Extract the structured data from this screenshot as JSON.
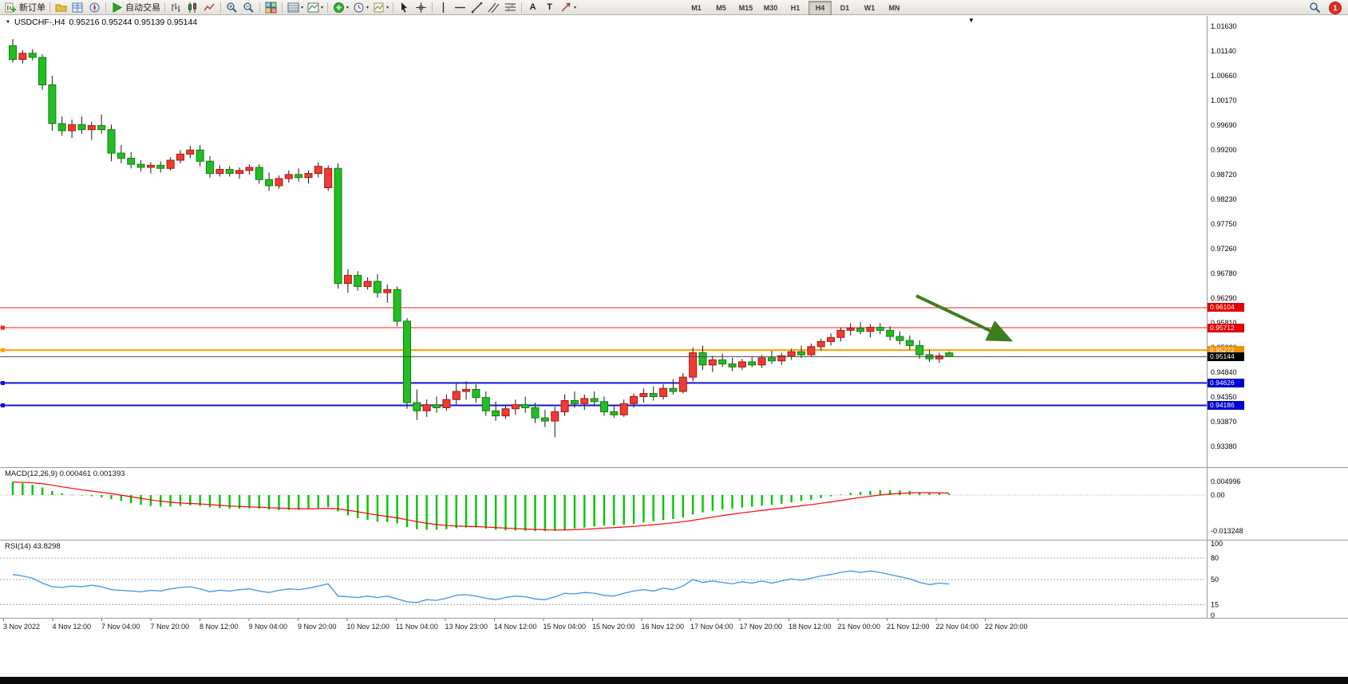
{
  "toolbar": {
    "new_order": "新订单",
    "auto_trading": "自动交易",
    "text_tool": "A",
    "label_tool": "T",
    "timeframes": [
      "M1",
      "M5",
      "M15",
      "M30",
      "H1",
      "H4",
      "D1",
      "W1",
      "MN"
    ],
    "active_timeframe": "H4",
    "notification_count": "1"
  },
  "chart": {
    "symbol_period": "USDCHF-,H4",
    "ohlc": "0.95216 0.95244 0.95139 0.95144",
    "open": "0.95216",
    "high": "0.95244",
    "low": "0.95139",
    "close": "0.95144",
    "price_axis_labels": [
      "1.01630",
      "1.01140",
      "1.00660",
      "1.00170",
      "0.99690",
      "0.99200",
      "0.98720",
      "0.98230",
      "0.97750",
      "0.97260",
      "0.96780",
      "0.96290",
      "0.95810",
      "0.95320",
      "0.94840",
      "0.94350",
      "0.93870",
      "0.93380"
    ],
    "time_axis_labels": [
      "3 Nov 2022",
      "4 Nov 12:00",
      "7 Nov 04:00",
      "7 Nov 20:00",
      "8 Nov 12:00",
      "9 Nov 04:00",
      "9 Nov 20:00",
      "10 Nov 12:00",
      "11 Nov 04:00",
      "13 Nov 23:00",
      "14 Nov 12:00",
      "15 Nov 04:00",
      "15 Nov 20:00",
      "16 Nov 12:00",
      "17 Nov 04:00",
      "17 Nov 20:00",
      "18 Nov 12:00",
      "21 Nov 00:00",
      "21 Nov 12:00",
      "22 Nov 04:00",
      "22 Nov 20:00"
    ],
    "levels": [
      {
        "value": 0.96104,
        "label": "0.96104",
        "color": "#FF1E1E",
        "tag_bg": "#E30000",
        "width": 1,
        "marker": false
      },
      {
        "value": 0.95712,
        "label": "0.95712",
        "color": "#FF1E1E",
        "tag_bg": "#E30000",
        "width": 1,
        "marker": true
      },
      {
        "value": 0.95272,
        "label": "0.95272",
        "color": "#FFA000",
        "tag_bg": "#F09000",
        "width": 2,
        "marker": true
      },
      {
        "value": 0.94626,
        "label": "0.94626",
        "color": "#1414CC",
        "tag_bg": "#0000D0",
        "width": 2,
        "marker": true
      },
      {
        "value": 0.94186,
        "label": "0.94186",
        "color": "#1414CC",
        "tag_bg": "#0000D0",
        "width": 2,
        "marker": true
      }
    ],
    "current_price": {
      "value": 0.95144,
      "label": "0.95144",
      "tag_bg": "#000000",
      "line_color": "#4a4a4a"
    },
    "trend_arrow": {
      "direction": "down-right",
      "color": "#3E7D1F"
    },
    "colors": {
      "bull": "#F23B32",
      "bear": "#22BE22",
      "bull_stroke": "#A81414",
      "bear_stroke": "#0E7E0E",
      "wick": "#1a1a1a"
    },
    "candles": [
      [
        1.0125,
        1.0138,
        1.0092,
        1.0098
      ],
      [
        1.0098,
        1.0116,
        1.009,
        1.011
      ],
      [
        1.011,
        1.0118,
        1.0096,
        1.0102
      ],
      [
        1.0102,
        1.0108,
        1.0038,
        1.0048
      ],
      [
        1.0048,
        1.0066,
        0.9958,
        0.9972
      ],
      [
        0.9972,
        0.9986,
        0.9948,
        0.9958
      ],
      [
        0.9958,
        0.998,
        0.9944,
        0.997
      ],
      [
        0.997,
        0.9986,
        0.9952,
        0.996
      ],
      [
        0.996,
        0.9976,
        0.994,
        0.9968
      ],
      [
        0.9968,
        0.999,
        0.9952,
        0.996
      ],
      [
        0.996,
        0.997,
        0.9898,
        0.9914
      ],
      [
        0.9914,
        0.993,
        0.9894,
        0.9904
      ],
      [
        0.9904,
        0.9916,
        0.9884,
        0.9892
      ],
      [
        0.9892,
        0.99,
        0.9878,
        0.9886
      ],
      [
        0.9886,
        0.9896,
        0.9874,
        0.989
      ],
      [
        0.989,
        0.9898,
        0.9876,
        0.9884
      ],
      [
        0.9884,
        0.9906,
        0.988,
        0.99
      ],
      [
        0.99,
        0.992,
        0.9894,
        0.9912
      ],
      [
        0.9912,
        0.9928,
        0.9904,
        0.992
      ],
      [
        0.992,
        0.993,
        0.9888,
        0.9898
      ],
      [
        0.9898,
        0.9908,
        0.9866,
        0.9874
      ],
      [
        0.9874,
        0.989,
        0.9868,
        0.9882
      ],
      [
        0.9882,
        0.9888,
        0.9868,
        0.9874
      ],
      [
        0.9874,
        0.9886,
        0.9864,
        0.988
      ],
      [
        0.988,
        0.9892,
        0.9872,
        0.9886
      ],
      [
        0.9886,
        0.9892,
        0.9854,
        0.9862
      ],
      [
        0.9862,
        0.9876,
        0.984,
        0.985
      ],
      [
        0.985,
        0.987,
        0.9844,
        0.9864
      ],
      [
        0.9864,
        0.988,
        0.9856,
        0.9872
      ],
      [
        0.9872,
        0.9884,
        0.9858,
        0.9866
      ],
      [
        0.9866,
        0.988,
        0.9854,
        0.9874
      ],
      [
        0.9874,
        0.9896,
        0.9866,
        0.9888
      ],
      [
        0.9846,
        0.989,
        0.984,
        0.9884
      ],
      [
        0.9884,
        0.9894,
        0.9648,
        0.9658
      ],
      [
        0.9658,
        0.9686,
        0.964,
        0.9674
      ],
      [
        0.9674,
        0.9682,
        0.9644,
        0.9652
      ],
      [
        0.9652,
        0.967,
        0.9646,
        0.9662
      ],
      [
        0.9662,
        0.9676,
        0.963,
        0.964
      ],
      [
        0.964,
        0.9656,
        0.962,
        0.9646
      ],
      [
        0.9646,
        0.9652,
        0.9574,
        0.9584
      ],
      [
        0.9584,
        0.959,
        0.9412,
        0.9424
      ],
      [
        0.9424,
        0.945,
        0.939,
        0.9408
      ],
      [
        0.9408,
        0.943,
        0.9396,
        0.942
      ],
      [
        0.942,
        0.9436,
        0.9404,
        0.9414
      ],
      [
        0.9414,
        0.944,
        0.9408,
        0.943
      ],
      [
        0.943,
        0.9462,
        0.942,
        0.9446
      ],
      [
        0.9446,
        0.9466,
        0.943,
        0.945
      ],
      [
        0.945,
        0.946,
        0.9424,
        0.9434
      ],
      [
        0.9434,
        0.9446,
        0.9398,
        0.9408
      ],
      [
        0.9408,
        0.9426,
        0.9388,
        0.9398
      ],
      [
        0.9398,
        0.942,
        0.9392,
        0.9412
      ],
      [
        0.9412,
        0.943,
        0.94,
        0.942
      ],
      [
        0.942,
        0.9436,
        0.9404,
        0.9414
      ],
      [
        0.9414,
        0.9424,
        0.9384,
        0.9394
      ],
      [
        0.9394,
        0.941,
        0.9376,
        0.9388
      ],
      [
        0.9388,
        0.9416,
        0.9356,
        0.9406
      ],
      [
        0.9406,
        0.944,
        0.9398,
        0.9428
      ],
      [
        0.9428,
        0.9446,
        0.9414,
        0.9422
      ],
      [
        0.9422,
        0.944,
        0.941,
        0.9432
      ],
      [
        0.9432,
        0.9446,
        0.9418,
        0.9426
      ],
      [
        0.9426,
        0.9436,
        0.9398,
        0.9406
      ],
      [
        0.9406,
        0.942,
        0.9394,
        0.94
      ],
      [
        0.94,
        0.943,
        0.9396,
        0.9422
      ],
      [
        0.9422,
        0.9442,
        0.9414,
        0.9436
      ],
      [
        0.9436,
        0.9452,
        0.9424,
        0.9442
      ],
      [
        0.9442,
        0.9456,
        0.9428,
        0.9436
      ],
      [
        0.9436,
        0.946,
        0.943,
        0.9452
      ],
      [
        0.9452,
        0.947,
        0.944,
        0.9446
      ],
      [
        0.9446,
        0.9482,
        0.9442,
        0.9474
      ],
      [
        0.9474,
        0.9532,
        0.9466,
        0.9522
      ],
      [
        0.9522,
        0.9536,
        0.9488,
        0.9498
      ],
      [
        0.9498,
        0.9516,
        0.9484,
        0.9508
      ],
      [
        0.9508,
        0.952,
        0.9494,
        0.95
      ],
      [
        0.95,
        0.9512,
        0.9486,
        0.9494
      ],
      [
        0.9494,
        0.951,
        0.9488,
        0.9504
      ],
      [
        0.9504,
        0.9514,
        0.9494,
        0.9498
      ],
      [
        0.9498,
        0.9518,
        0.9492,
        0.9512
      ],
      [
        0.9512,
        0.9526,
        0.95,
        0.9506
      ],
      [
        0.9506,
        0.9522,
        0.9498,
        0.9516
      ],
      [
        0.9516,
        0.953,
        0.9508,
        0.9524
      ],
      [
        0.9524,
        0.9536,
        0.9512,
        0.9518
      ],
      [
        0.9518,
        0.954,
        0.9514,
        0.9534
      ],
      [
        0.9534,
        0.955,
        0.9526,
        0.9544
      ],
      [
        0.9544,
        0.956,
        0.9536,
        0.9552
      ],
      [
        0.9552,
        0.9572,
        0.9544,
        0.9566
      ],
      [
        0.9566,
        0.958,
        0.9556,
        0.957
      ],
      [
        0.957,
        0.9582,
        0.9558,
        0.9564
      ],
      [
        0.9564,
        0.9578,
        0.9552,
        0.9572
      ],
      [
        0.9572,
        0.958,
        0.9558,
        0.9566
      ],
      [
        0.9566,
        0.9574,
        0.9546,
        0.9554
      ],
      [
        0.9554,
        0.9564,
        0.9538,
        0.9546
      ],
      [
        0.9546,
        0.9556,
        0.9528,
        0.9536
      ],
      [
        0.9536,
        0.9546,
        0.951,
        0.9518
      ],
      [
        0.9518,
        0.9528,
        0.9504,
        0.951
      ],
      [
        0.951,
        0.9522,
        0.9502,
        0.9516
      ],
      [
        0.95216,
        0.95244,
        0.95139,
        0.95144
      ]
    ]
  },
  "macd": {
    "label": "MACD(12,26,9)",
    "values": "0.000461 0.001393",
    "axis_labels": [
      "0.004996",
      "0.00",
      "-0.013248"
    ],
    "colors": {
      "histogram": "#00C400",
      "signal": "#FF0000"
    },
    "histogram": [
      0.0048,
      0.0044,
      0.0038,
      0.0028,
      0.0015,
      0.0006,
      0.0002,
      -0.0002,
      -0.0004,
      -0.0008,
      -0.0015,
      -0.0022,
      -0.003,
      -0.0036,
      -0.004,
      -0.0042,
      -0.0042,
      -0.004,
      -0.0038,
      -0.004,
      -0.0045,
      -0.0048,
      -0.005,
      -0.005,
      -0.0049,
      -0.005,
      -0.0053,
      -0.0055,
      -0.0055,
      -0.0054,
      -0.0052,
      -0.0048,
      -0.0044,
      -0.006,
      -0.0075,
      -0.0085,
      -0.0092,
      -0.0098,
      -0.01,
      -0.0105,
      -0.0118,
      -0.0126,
      -0.0128,
      -0.0128,
      -0.0126,
      -0.0122,
      -0.012,
      -0.012,
      -0.0124,
      -0.0128,
      -0.013,
      -0.0131,
      -0.0132,
      -0.0133,
      -0.0133,
      -0.0132,
      -0.0128,
      -0.0124,
      -0.012,
      -0.0116,
      -0.0113,
      -0.0112,
      -0.011,
      -0.0106,
      -0.0101,
      -0.0097,
      -0.0092,
      -0.0088,
      -0.0082,
      -0.0072,
      -0.0064,
      -0.0058,
      -0.0053,
      -0.005,
      -0.0046,
      -0.0043,
      -0.0039,
      -0.0036,
      -0.0032,
      -0.0027,
      -0.0022,
      -0.0017,
      -0.0011,
      -0.0005,
      0.0002,
      0.0008,
      0.0012,
      0.0015,
      0.0017,
      0.0018,
      0.0017,
      0.0015,
      0.0011,
      0.0008,
      0.0006,
      0.000461
    ]
  },
  "rsi": {
    "label": "RSI(14)",
    "value": "43.8298",
    "axis_labels": [
      "100",
      "80",
      "50",
      "15",
      "0"
    ],
    "levels": [
      80,
      50,
      15
    ],
    "color": "#3C96E8",
    "series": [
      57,
      55,
      52,
      45,
      40,
      39,
      41,
      40,
      42,
      40,
      36,
      35,
      34,
      33,
      35,
      34,
      37,
      39,
      40,
      37,
      33,
      35,
      34,
      36,
      37,
      34,
      32,
      35,
      37,
      36,
      38,
      41,
      44,
      27,
      26,
      25,
      27,
      25,
      27,
      23,
      19,
      18,
      22,
      21,
      24,
      28,
      29,
      27,
      24,
      22,
      25,
      27,
      26,
      23,
      22,
      26,
      31,
      30,
      32,
      31,
      28,
      27,
      31,
      34,
      36,
      34,
      38,
      36,
      41,
      50,
      46,
      48,
      46,
      44,
      47,
      45,
      48,
      45,
      48,
      51,
      49,
      52,
      55,
      57,
      60,
      62,
      60,
      62,
      60,
      57,
      54,
      51,
      46,
      43,
      45,
      43.8298
    ]
  }
}
